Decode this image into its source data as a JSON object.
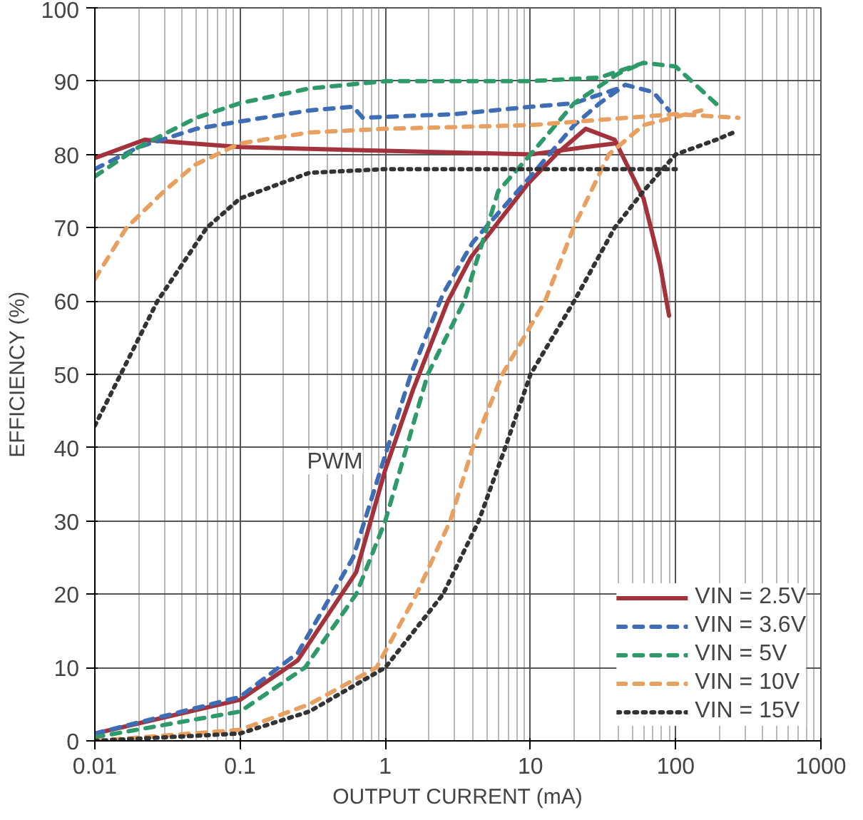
{
  "chart_data": {
    "type": "line",
    "xlabel": "OUTPUT CURRENT (mA)",
    "ylabel": "EFFICIENCY (%)",
    "log": "x",
    "xlim": [
      0.01,
      1000
    ],
    "xticks": [
      0.01,
      0.1,
      1,
      10,
      100,
      1000
    ],
    "ylim": [
      0,
      100
    ],
    "yticks": [
      0,
      10,
      20,
      30,
      40,
      50,
      60,
      70,
      80,
      90,
      100
    ],
    "grid": true,
    "legend": "bottom right",
    "marker": "none",
    "annotations": [
      {
        "text": "PWM",
        "x": 0.45,
        "y": 38
      }
    ],
    "series": [
      {
        "name": "VIN = 2.5V",
        "color": "#a3323c",
        "line_style": "solid",
        "x": [
          0.01,
          0.1,
          0.25,
          0.63,
          1,
          1.56,
          2.7,
          3.9,
          9.6,
          15,
          24,
          38,
          60,
          78,
          90
        ],
        "values": [
          1,
          5.6,
          11,
          23,
          37,
          48,
          60,
          66,
          76,
          80,
          83.5,
          82,
          74,
          65,
          58
        ]
      },
      {
        "color": "#a3323c",
        "line_style": "solid",
        "x": [
          0.01,
          0.022,
          0.1,
          1,
          10,
          24,
          38
        ],
        "values": [
          79.5,
          82,
          81,
          80.5,
          80,
          81,
          81.5
        ]
      },
      {
        "name": "VIN = 3.6V",
        "color": "#3e6db5",
        "line_style": "dashed",
        "x": [
          0.01,
          0.1,
          0.25,
          0.6,
          1,
          1.5,
          2.5,
          4,
          10,
          20,
          30,
          45,
          70,
          90
        ],
        "values": [
          1,
          6,
          12,
          25,
          39,
          50,
          61,
          68,
          77,
          84,
          87,
          89.5,
          88.5,
          86
        ]
      },
      {
        "color": "#3e6db5",
        "line_style": "dashed",
        "x": [
          0.01,
          0.02,
          0.05,
          0.1,
          0.3,
          0.6,
          0.7,
          3,
          10,
          20,
          40
        ],
        "values": [
          78,
          81,
          83.5,
          84.5,
          86,
          86.5,
          85,
          85.5,
          86.5,
          87,
          89
        ]
      },
      {
        "name": "VIN = 5V",
        "color": "#2e9a6a",
        "line_style": "dashed",
        "x": [
          0.01,
          0.1,
          0.28,
          0.63,
          1,
          1.96,
          3.5,
          6,
          10,
          20,
          40,
          60
        ],
        "values": [
          0.5,
          4,
          10,
          20,
          30,
          50,
          60,
          75,
          80,
          87,
          91,
          92.5
        ]
      },
      {
        "color": "#2e9a6a",
        "line_style": "dashed",
        "x": [
          0.01,
          0.02,
          0.05,
          0.1,
          0.3,
          1,
          10,
          30,
          60,
          100,
          200
        ],
        "values": [
          77,
          81,
          85,
          87,
          89,
          90,
          90,
          90.5,
          92.5,
          92,
          86.5
        ]
      },
      {
        "name": "VIN = 10V",
        "color": "#e8a060",
        "line_style": "dashed",
        "x": [
          0.01,
          0.1,
          0.3,
          0.87,
          1.64,
          2.8,
          4,
          6.4,
          12.6,
          19.8,
          34.6,
          60,
          150
        ],
        "values": [
          0,
          1.5,
          5,
          10,
          20,
          30,
          40,
          50,
          60,
          70,
          80,
          84,
          86
        ]
      },
      {
        "color": "#e8a060",
        "line_style": "dashed",
        "x": [
          0.01,
          0.0165,
          0.03,
          0.049,
          0.1,
          0.3,
          1,
          10,
          100,
          270
        ],
        "values": [
          63,
          70,
          75,
          78.6,
          81.5,
          83,
          83.5,
          84,
          85.5,
          85
        ]
      },
      {
        "name": "VIN = 15V",
        "color": "#333333",
        "line_style": "dotted",
        "x": [
          0.01,
          0.1,
          0.3,
          1,
          2.5,
          4.4,
          6.7,
          10,
          20,
          38,
          60,
          100,
          190,
          250
        ],
        "values": [
          0,
          1,
          4,
          10,
          20,
          30,
          40,
          50,
          60,
          70,
          75,
          80,
          82,
          83
        ]
      },
      {
        "color": "#333333",
        "line_style": "dotted",
        "x": [
          0.01,
          0.027,
          0.059,
          0.1,
          0.3,
          1,
          100
        ],
        "values": [
          43,
          60,
          70,
          74,
          77.5,
          78,
          78
        ]
      }
    ]
  }
}
